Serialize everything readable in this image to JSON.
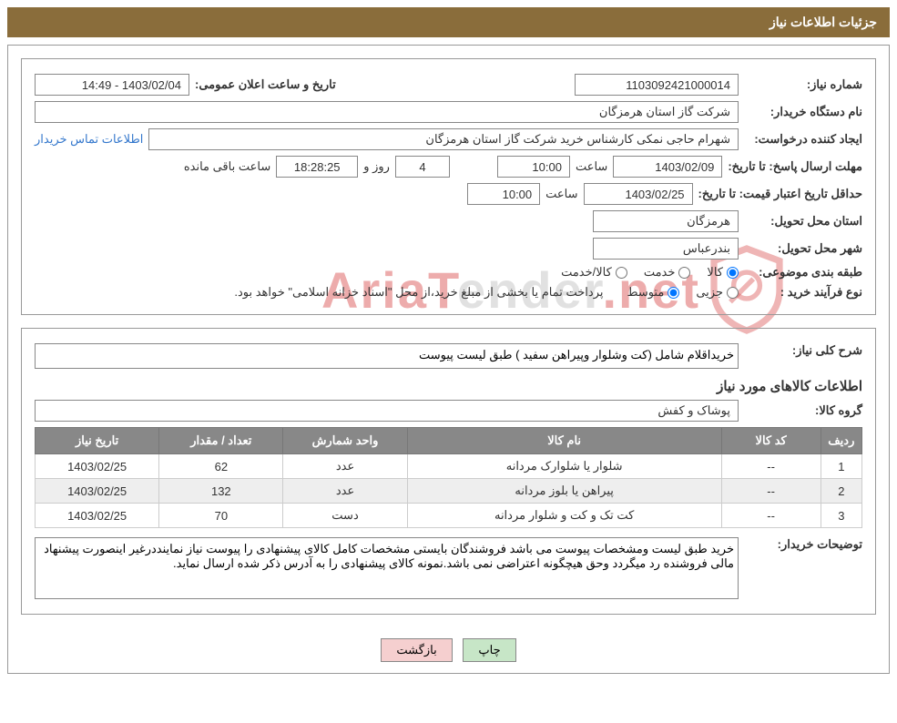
{
  "header": {
    "title": "جزئیات اطلاعات نیاز"
  },
  "general": {
    "need_number_label": "شماره نیاز:",
    "need_number": "1103092421000014",
    "announce_label": "تاریخ و ساعت اعلان عمومی:",
    "announce_value": "1403/02/04 - 14:49",
    "buyer_org_label": "نام دستگاه خریدار:",
    "buyer_org": "شرکت گاز استان هرمزگان",
    "requester_label": "ایجاد کننده درخواست:",
    "requester": "شهرام حاجی نمکی کارشناس خرید شرکت گاز استان هرمزگان",
    "contact_link": "اطلاعات تماس خریدار",
    "deadline_label": "مهلت ارسال پاسخ:",
    "to_date_label": "تا تاریخ:",
    "deadline_date": "1403/02/09",
    "time_label": "ساعت",
    "deadline_time": "10:00",
    "days_value": "4",
    "days_label": "روز و",
    "hours_value": "18:28:25",
    "hours_label": "ساعت باقی مانده",
    "price_validity_label": "حداقل تاریخ اعتبار قیمت:",
    "price_date": "1403/02/25",
    "price_time": "10:00",
    "delivery_province_label": "استان محل تحویل:",
    "delivery_province": "هرمزگان",
    "delivery_city_label": "شهر محل تحویل:",
    "delivery_city": "بندرعباس",
    "subject_class_label": "طبقه بندی موضوعی:",
    "subject_opt1": "کالا",
    "subject_opt2": "خدمت",
    "subject_opt3": "کالا/خدمت",
    "process_type_label": "نوع فرآیند خرید :",
    "process_opt1": "جزیی",
    "process_opt2": "متوسط",
    "process_note": "پرداخت تمام یا بخشی از مبلغ خرید،از محل \"اسناد خزانه اسلامی\" خواهد بود."
  },
  "detail": {
    "need_desc_label": "شرح کلی نیاز:",
    "need_desc": "خریداقلام شامل (کت وشلوار وپیراهن سفید ) طبق لیست پیوست",
    "items_header": "اطلاعات کالاهای مورد نیاز",
    "group_label": "گروه کالا:",
    "group_value": "پوشاک و کفش",
    "table": {
      "columns": [
        "ردیف",
        "کد کالا",
        "نام کالا",
        "واحد شمارش",
        "تعداد / مقدار",
        "تاریخ نیاز"
      ],
      "col_widths": [
        "5%",
        "12%",
        "38%",
        "15%",
        "15%",
        "15%"
      ],
      "rows": [
        [
          "1",
          "--",
          "شلوار یا شلوارک مردانه",
          "عدد",
          "62",
          "1403/02/25"
        ],
        [
          "2",
          "--",
          "پیراهن یا بلوز مردانه",
          "عدد",
          "132",
          "1403/02/25"
        ],
        [
          "3",
          "--",
          "کت تک و کت و شلوار مردانه",
          "دست",
          "70",
          "1403/02/25"
        ]
      ]
    },
    "buyer_notes_label": "توضیحات خریدار:",
    "buyer_notes": "خرید طبق لیست ومشخصات پیوست می باشد فروشندگان بایستی مشخصات کامل کالای پیشنهادی را پیوست نیاز نماینددرغیر اینصورت پیشنهاد مالی فروشنده رد میگردد وحق هیچگونه اعتراضی نمی باشد.نمونه کالای پیشنهادی را به آدرس ذکر شده ارسال نماید."
  },
  "buttons": {
    "print": "چاپ",
    "back": "بازگشت"
  },
  "watermark": {
    "text_part1": "AriaT",
    "text_part2": "ender",
    "text_part3": ".net"
  },
  "style": {
    "header_bg": "#8a6d3b",
    "header_fg": "#ffffff",
    "th_bg": "#888888",
    "th_fg": "#ffffff",
    "row_alt_bg": "#eeeeee",
    "btn_green": "#c7e6c7",
    "btn_pink": "#f5cfcf",
    "link_color": "#3377cc"
  }
}
